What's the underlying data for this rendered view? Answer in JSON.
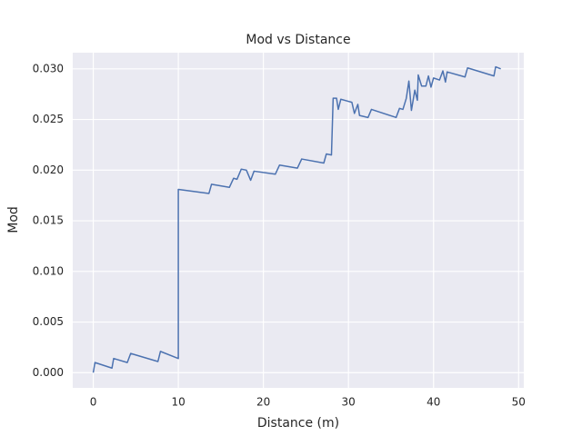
{
  "chart_data": {
    "type": "line",
    "title": "Mod vs Distance",
    "x_label": "Distance (m)",
    "y_label": "Mod",
    "x": [
      0,
      0.2,
      2.2,
      2.4,
      4.0,
      4.4,
      7.6,
      7.9,
      10.0,
      10.0,
      13.6,
      13.9,
      16.0,
      16.5,
      16.9,
      17.4,
      18.0,
      18.5,
      18.9,
      21.4,
      21.9,
      24.0,
      24.5,
      27.1,
      27.4,
      28.0,
      28.2,
      28.6,
      28.8,
      29.1,
      30.4,
      30.7,
      31.1,
      31.3,
      32.3,
      32.7,
      35.6,
      36.0,
      36.4,
      36.8,
      37.1,
      37.4,
      37.8,
      38.1,
      38.2,
      38.6,
      39.1,
      39.4,
      39.7,
      40.0,
      40.7,
      41.1,
      41.4,
      41.6,
      43.7,
      44.0,
      47.1,
      47.3,
      47.9
    ],
    "series": [
      {
        "name": "Mod",
        "color": "#4c72b0",
        "values": [
          0,
          0.001,
          0.00045,
          0.0014,
          0.001,
          0.0019,
          0.0011,
          0.0021,
          0.0014,
          0.0181,
          0.0177,
          0.0186,
          0.0183,
          0.0192,
          0.0191,
          0.0201,
          0.02,
          0.019,
          0.0199,
          0.0196,
          0.0205,
          0.0202,
          0.0211,
          0.0207,
          0.0216,
          0.0215,
          0.0271,
          0.0271,
          0.026,
          0.027,
          0.0267,
          0.0256,
          0.0265,
          0.0254,
          0.0252,
          0.026,
          0.0252,
          0.0261,
          0.026,
          0.0271,
          0.0288,
          0.0259,
          0.0279,
          0.0269,
          0.0294,
          0.0283,
          0.0283,
          0.0293,
          0.0282,
          0.0291,
          0.0289,
          0.0298,
          0.0287,
          0.0297,
          0.0292,
          0.0301,
          0.0293,
          0.0302,
          0.03
        ]
      }
    ],
    "xlim": [
      -2.41,
      50.61
    ],
    "xticks": [
      0,
      10,
      20,
      30,
      40,
      50
    ],
    "ylim": [
      -0.0015,
      0.0316
    ],
    "yticks": [
      {
        "value": 0,
        "label": "0.000"
      },
      {
        "value": 0.005,
        "label": "0.005"
      },
      {
        "value": 0.01,
        "label": "0.010"
      },
      {
        "value": 0.015,
        "label": "0.015"
      },
      {
        "value": 0.02,
        "label": "0.020"
      },
      {
        "value": 0.025,
        "label": "0.025"
      },
      {
        "value": 0.03,
        "label": "0.030"
      }
    ],
    "grid": true
  }
}
